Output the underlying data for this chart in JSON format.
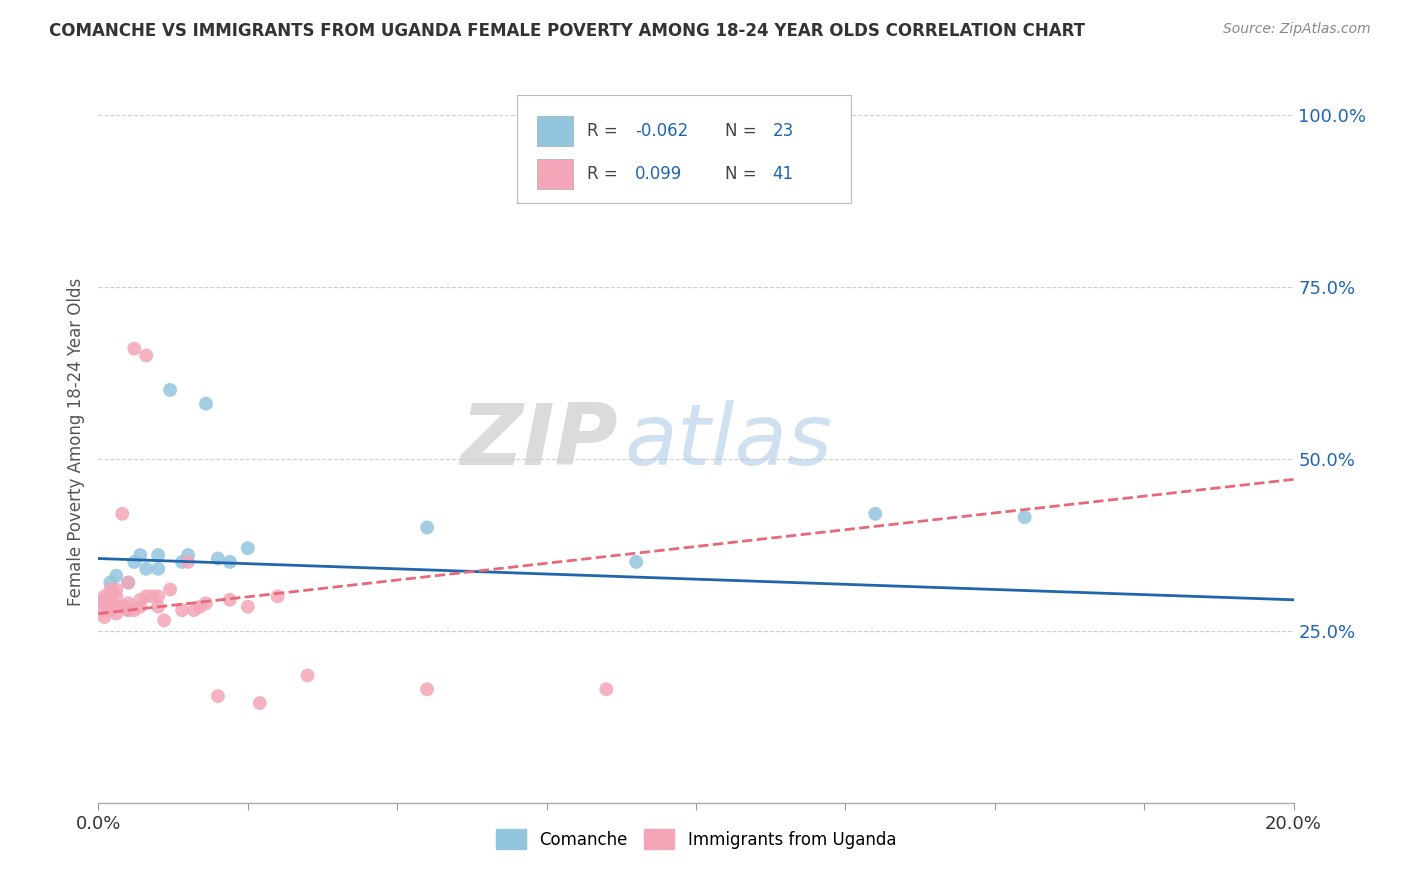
{
  "title": "COMANCHE VS IMMIGRANTS FROM UGANDA FEMALE POVERTY AMONG 18-24 YEAR OLDS CORRELATION CHART",
  "source": "Source: ZipAtlas.com",
  "ylabel": "Female Poverty Among 18-24 Year Olds",
  "xlim": [
    0.0,
    0.2
  ],
  "ylim": [
    0.0,
    1.05
  ],
  "yticks": [
    0.25,
    0.5,
    0.75,
    1.0
  ],
  "ytick_labels": [
    "25.0%",
    "50.0%",
    "75.0%",
    "100.0%"
  ],
  "xticks": [
    0.0,
    0.025,
    0.05,
    0.075,
    0.1,
    0.125,
    0.15,
    0.175,
    0.2
  ],
  "watermark_zip": "ZIP",
  "watermark_atlas": "atlas",
  "comanche_color": "#92c5de",
  "uganda_color": "#f4a6b8",
  "comanche_line_color": "#2166ac",
  "uganda_line_color": "#e8687a",
  "background_color": "#ffffff",
  "grid_color": "#d0d0d0",
  "comanche_x": [
    0.001,
    0.002,
    0.002,
    0.003,
    0.004,
    0.005,
    0.005,
    0.006,
    0.007,
    0.008,
    0.01,
    0.01,
    0.012,
    0.014,
    0.015,
    0.018,
    0.02,
    0.022,
    0.025,
    0.055,
    0.09,
    0.13,
    0.155
  ],
  "comanche_y": [
    0.295,
    0.3,
    0.32,
    0.33,
    0.285,
    0.28,
    0.32,
    0.35,
    0.36,
    0.34,
    0.34,
    0.36,
    0.6,
    0.35,
    0.36,
    0.58,
    0.355,
    0.35,
    0.37,
    0.4,
    0.35,
    0.42,
    0.415
  ],
  "uganda_x": [
    0.001,
    0.001,
    0.001,
    0.001,
    0.002,
    0.002,
    0.002,
    0.002,
    0.003,
    0.003,
    0.003,
    0.003,
    0.004,
    0.004,
    0.005,
    0.005,
    0.005,
    0.006,
    0.006,
    0.007,
    0.007,
    0.008,
    0.008,
    0.009,
    0.01,
    0.01,
    0.011,
    0.012,
    0.014,
    0.015,
    0.016,
    0.017,
    0.018,
    0.02,
    0.022,
    0.025,
    0.027,
    0.03,
    0.035,
    0.055,
    0.085
  ],
  "uganda_y": [
    0.27,
    0.28,
    0.29,
    0.3,
    0.28,
    0.285,
    0.295,
    0.31,
    0.275,
    0.285,
    0.3,
    0.31,
    0.285,
    0.42,
    0.28,
    0.29,
    0.32,
    0.28,
    0.66,
    0.285,
    0.295,
    0.3,
    0.65,
    0.3,
    0.285,
    0.3,
    0.265,
    0.31,
    0.28,
    0.35,
    0.28,
    0.285,
    0.29,
    0.155,
    0.295,
    0.285,
    0.145,
    0.3,
    0.185,
    0.165,
    0.165
  ],
  "comanche_trend_x": [
    0.0,
    0.2
  ],
  "comanche_trend_y": [
    0.355,
    0.295
  ],
  "uganda_trend_x": [
    0.0,
    0.2
  ],
  "uganda_trend_y": [
    0.275,
    0.47
  ]
}
